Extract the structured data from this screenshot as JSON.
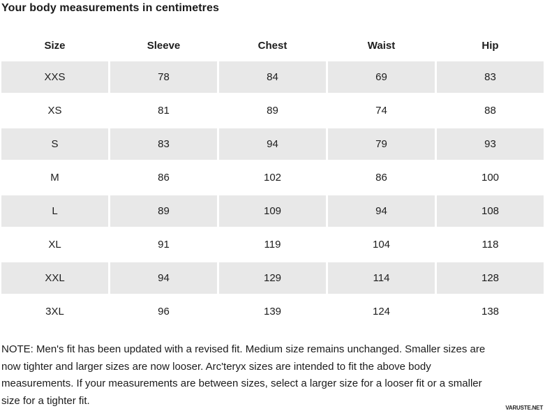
{
  "title": "Your body measurements in centimetres",
  "table": {
    "columns": [
      "Size",
      "Sleeve",
      "Chest",
      "Waist",
      "Hip"
    ],
    "rows": [
      [
        "XXS",
        "78",
        "84",
        "69",
        "83"
      ],
      [
        "XS",
        "81",
        "89",
        "74",
        "88"
      ],
      [
        "S",
        "83",
        "94",
        "79",
        "93"
      ],
      [
        "M",
        "86",
        "102",
        "86",
        "100"
      ],
      [
        "L",
        "89",
        "109",
        "94",
        "108"
      ],
      [
        "XL",
        "91",
        "119",
        "104",
        "118"
      ],
      [
        "XXL",
        "94",
        "129",
        "114",
        "128"
      ],
      [
        "3XL",
        "96",
        "139",
        "124",
        "138"
      ]
    ]
  },
  "note_lines": [
    "NOTE: Men's fit has been updated with a revised fit. Medium size remains unchanged. Smaller sizes are",
    "now tighter and larger sizes are now looser. Arc'teryx sizes are intended to fit the above body",
    "measurements. If your measurements are between sizes, select a larger size for a looser fit or a smaller",
    "size for a tighter fit."
  ],
  "watermark": "VARUSTE.NET",
  "colors": {
    "stripe": "#e8e8e8",
    "text": "#1d1d1d",
    "background": "#ffffff"
  }
}
